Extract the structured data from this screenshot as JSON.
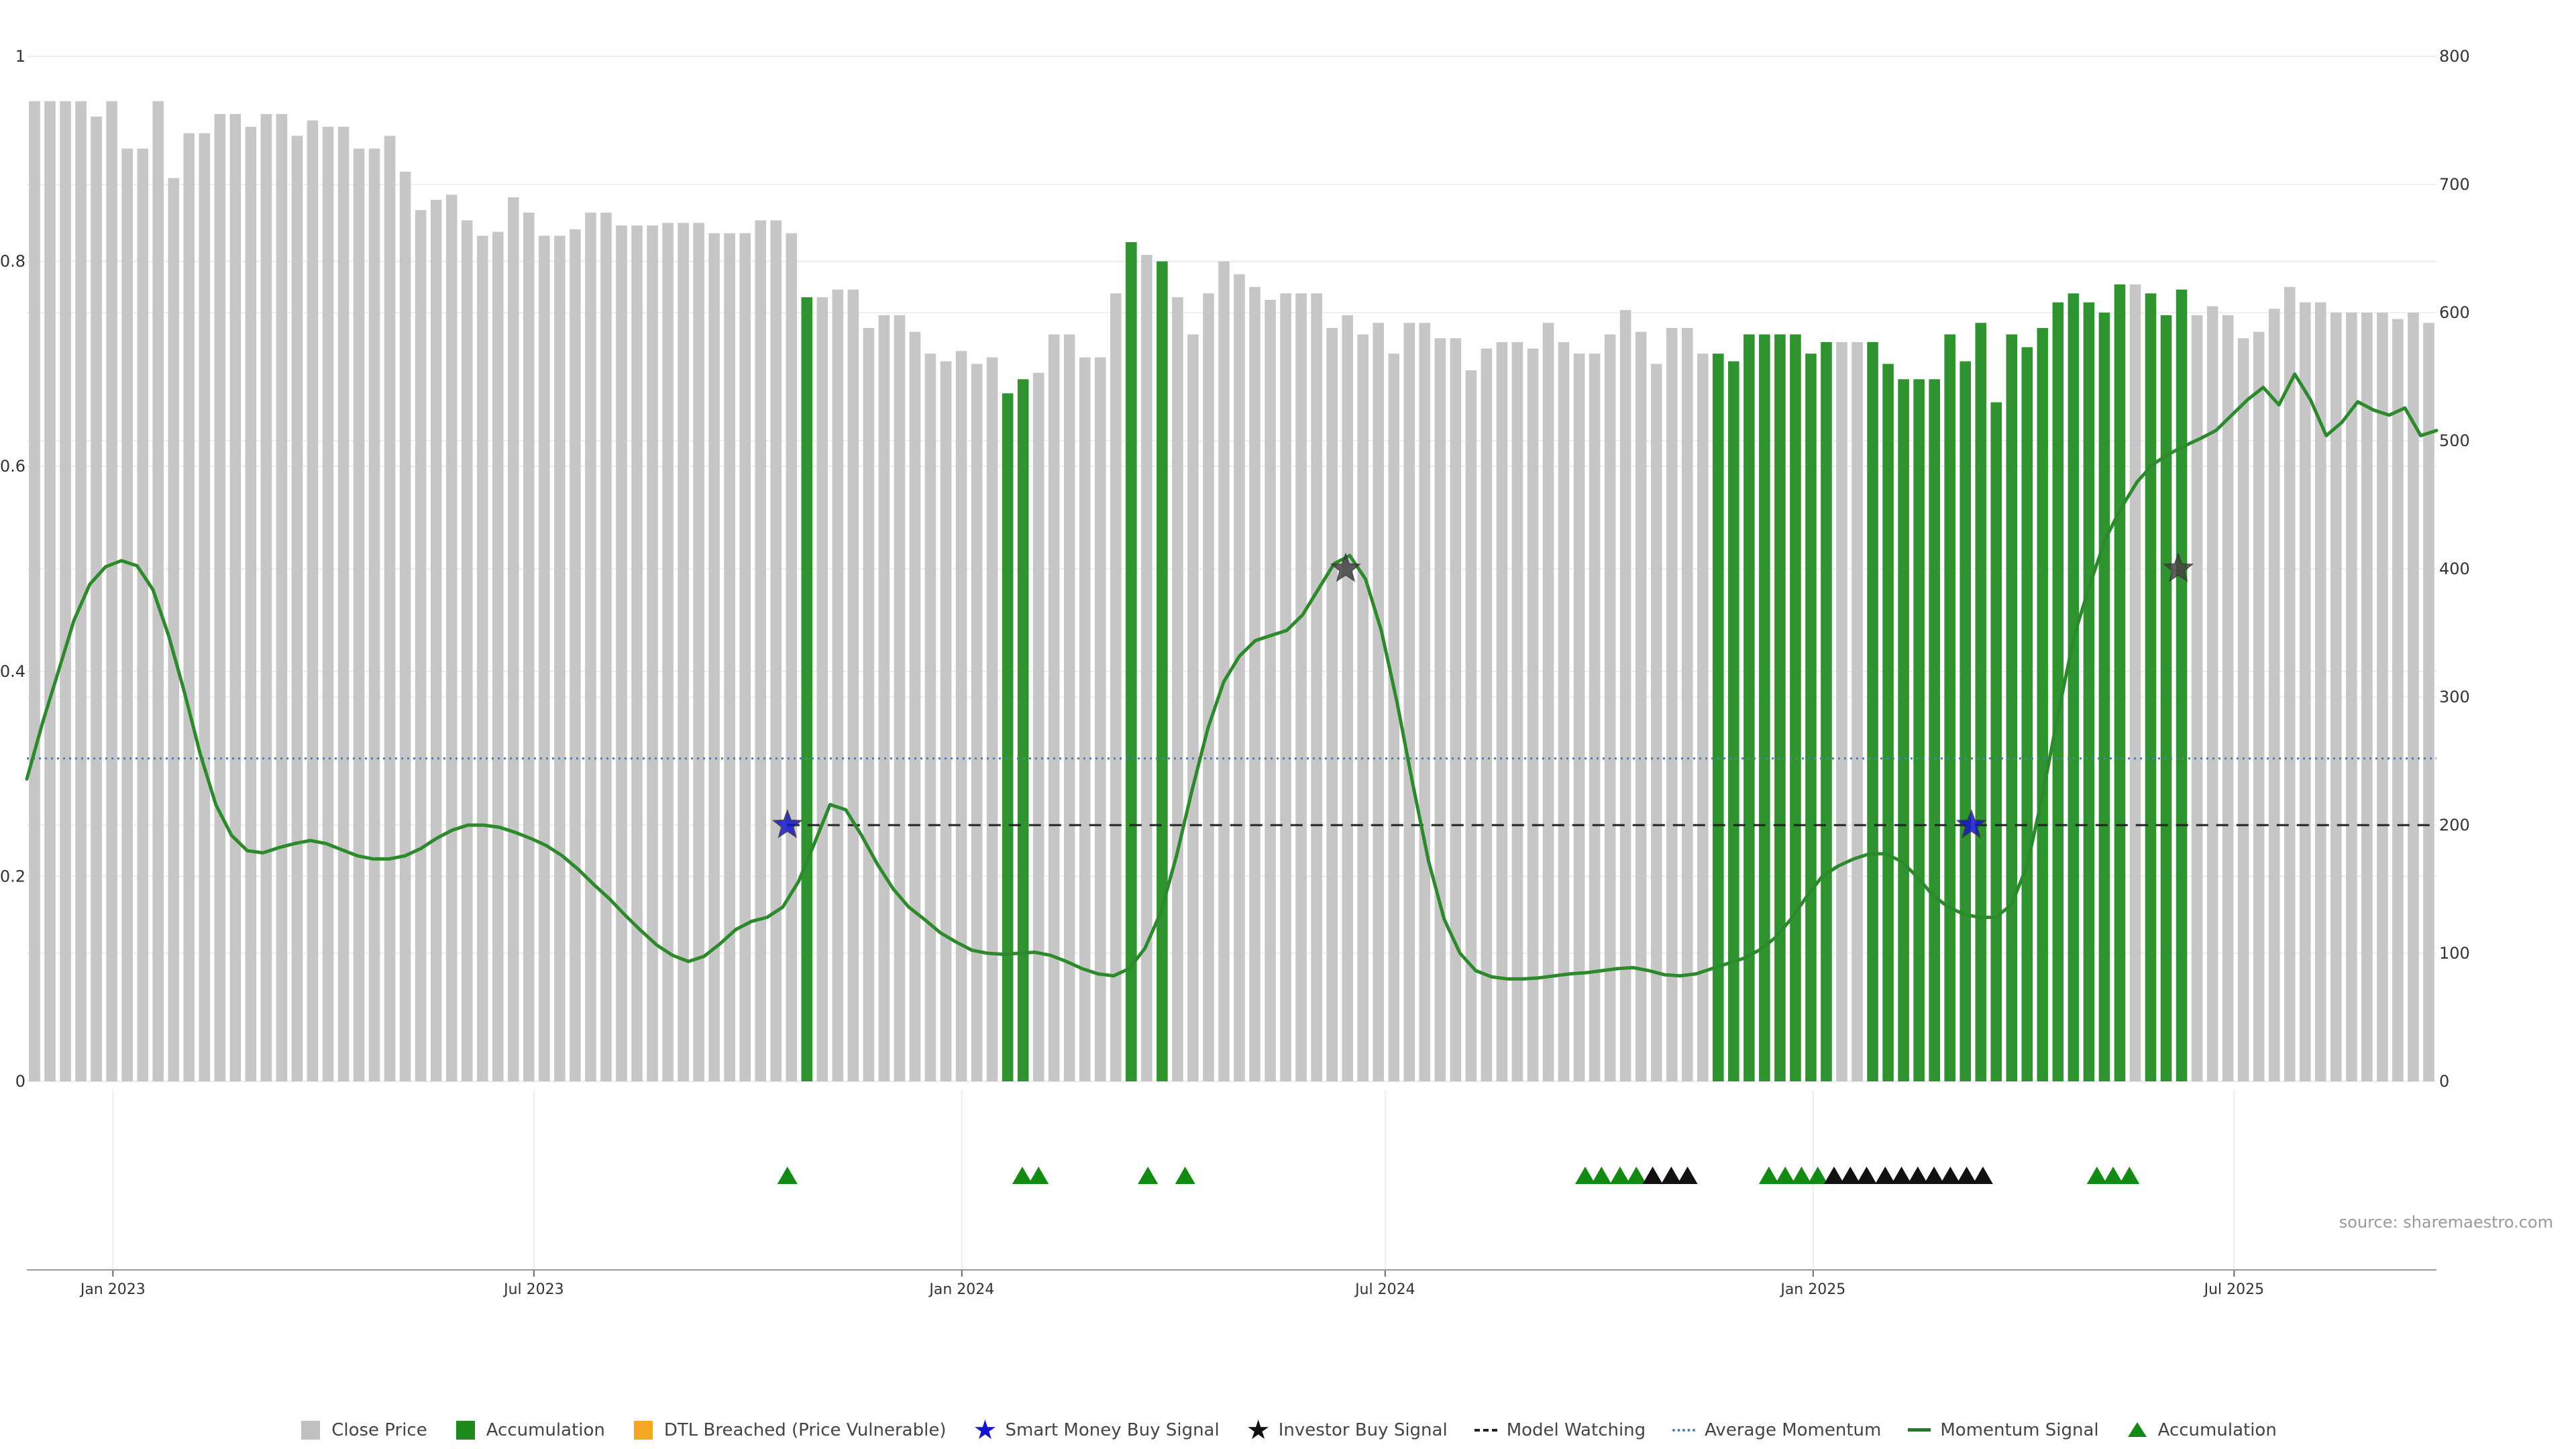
{
  "colors": {
    "close": "#c6c6c6",
    "accumulation": "#2f932f",
    "dtl": "#f5a623",
    "smart_money": "#1414cc",
    "investor": "#111111",
    "momentum": "#2c8a2c",
    "avg_momentum": "#4a7fb5",
    "grid": "#ececec",
    "triangle_green": "#138a13",
    "triangle_black": "#111111"
  },
  "source": "source: sharemaestro.com",
  "legend": [
    {
      "label": "Close Price",
      "kind": "square",
      "color": "#c0c0c0",
      "glyph": ""
    },
    {
      "label": "Accumulation",
      "kind": "square",
      "color": "#1e8a1e",
      "glyph": ""
    },
    {
      "label": "DTL Breached (Price Vulnerable)",
      "kind": "square",
      "color": "#f5a623",
      "glyph": ""
    },
    {
      "label": "Smart Money Buy Signal",
      "kind": "glyph",
      "color": "#1414cc",
      "glyph": "★"
    },
    {
      "label": "Investor Buy Signal",
      "kind": "glyph",
      "color": "#111111",
      "glyph": "★"
    },
    {
      "label": "Model Watching",
      "kind": "dash",
      "color": "#222222",
      "glyph": ""
    },
    {
      "label": "Average Momentum",
      "kind": "dot",
      "color": "#4a7fb5",
      "glyph": ""
    },
    {
      "label": "Momentum Signal",
      "kind": "solid",
      "color": "#1e7d1e",
      "glyph": ""
    },
    {
      "label": "Accumulation",
      "kind": "tri",
      "color": "#138a13",
      "glyph": ""
    }
  ],
  "chart_data": {
    "type": "bar",
    "x_start": "2022-11-25",
    "x_end": "2025-09-26",
    "x_ticks": [
      {
        "date": "2023-01-01",
        "label": "Jan 2023"
      },
      {
        "date": "2023-07-01",
        "label": "Jul 2023"
      },
      {
        "date": "2024-01-01",
        "label": "Jan 2024"
      },
      {
        "date": "2024-07-01",
        "label": "Jul 2024"
      },
      {
        "date": "2025-01-01",
        "label": "Jan 2025"
      },
      {
        "date": "2025-07-01",
        "label": "Jul 2025"
      }
    ],
    "left_axis": {
      "ylim": [
        0,
        1
      ],
      "ticks": [
        "0",
        "0.2",
        "0.4",
        "0.6",
        "0.8",
        "1"
      ]
    },
    "right_axis": {
      "ylim": [
        0,
        800
      ],
      "ticks": [
        "0",
        "100",
        "200",
        "300",
        "400",
        "500",
        "600",
        "700",
        "800"
      ]
    },
    "grid": true,
    "legend_position": "bottom",
    "close_price": [
      765,
      765,
      765,
      765,
      753,
      765,
      728,
      728,
      765,
      705,
      740,
      740,
      755,
      755,
      745,
      755,
      755,
      738,
      750,
      745,
      745,
      728,
      728,
      738,
      710,
      680,
      688,
      692,
      672,
      660,
      663,
      690,
      678,
      660,
      660,
      665,
      678,
      678,
      668,
      668,
      668,
      670,
      670,
      670,
      662,
      662,
      662,
      672,
      672,
      662,
      612,
      612,
      618,
      618,
      588,
      598,
      598,
      585,
      568,
      562,
      570,
      560,
      565,
      537,
      548,
      553,
      583,
      583,
      565,
      565,
      615,
      655,
      645,
      640,
      612,
      583,
      615,
      640,
      630,
      620,
      610,
      615,
      615,
      615,
      588,
      598,
      583,
      592,
      568,
      592,
      592,
      580,
      580,
      555,
      572,
      577,
      577,
      572,
      592,
      577,
      568,
      568,
      583,
      602,
      585,
      560,
      588,
      588,
      568,
      568,
      562,
      583,
      583,
      583,
      583,
      568,
      577,
      577,
      577,
      577,
      560,
      548,
      548,
      548,
      583,
      562,
      592,
      530,
      583,
      573,
      588,
      608,
      615,
      608,
      600,
      622,
      622,
      615,
      598,
      618,
      598,
      605,
      598,
      580,
      585,
      603,
      620,
      608,
      608,
      600,
      600,
      600,
      600,
      595,
      600,
      592
    ],
    "accumulation_bar_indices": [
      50,
      63,
      64,
      71,
      73,
      109,
      110,
      111,
      112,
      113,
      114,
      115,
      116,
      119,
      120,
      121,
      122,
      123,
      124,
      125,
      126,
      127,
      128,
      129,
      130,
      129,
      131,
      132,
      133,
      134,
      135,
      137,
      138,
      139
    ],
    "momentum": [
      0.295,
      0.35,
      0.4,
      0.45,
      0.485,
      0.502,
      0.508,
      0.503,
      0.48,
      0.435,
      0.38,
      0.32,
      0.27,
      0.24,
      0.225,
      0.223,
      0.228,
      0.232,
      0.235,
      0.232,
      0.226,
      0.22,
      0.217,
      0.217,
      0.22,
      0.227,
      0.237,
      0.245,
      0.25,
      0.25,
      0.248,
      0.243,
      0.237,
      0.23,
      0.22,
      0.207,
      0.192,
      0.178,
      0.162,
      0.147,
      0.133,
      0.123,
      0.117,
      0.122,
      0.134,
      0.148,
      0.156,
      0.16,
      0.17,
      0.195,
      0.232,
      0.27,
      0.265,
      0.24,
      0.212,
      0.188,
      0.17,
      0.158,
      0.145,
      0.136,
      0.128,
      0.125,
      0.124,
      0.125,
      0.126,
      0.123,
      0.117,
      0.11,
      0.105,
      0.103,
      0.11,
      0.13,
      0.165,
      0.22,
      0.285,
      0.345,
      0.39,
      0.415,
      0.43,
      0.435,
      0.44,
      0.455,
      0.48,
      0.505,
      0.513,
      0.49,
      0.44,
      0.37,
      0.29,
      0.215,
      0.158,
      0.125,
      0.108,
      0.102,
      0.1,
      0.1,
      0.101,
      0.103,
      0.105,
      0.106,
      0.108,
      0.11,
      0.111,
      0.108,
      0.104,
      0.103,
      0.105,
      0.11,
      0.115,
      0.12,
      0.128,
      0.14,
      0.158,
      0.18,
      0.2,
      0.21,
      0.217,
      0.222,
      0.222,
      0.215,
      0.2,
      0.182,
      0.17,
      0.163,
      0.16,
      0.16,
      0.172,
      0.21,
      0.28,
      0.36,
      0.435,
      0.485,
      0.53,
      0.56,
      0.585,
      0.602,
      0.612,
      0.62,
      0.627,
      0.635,
      0.65,
      0.665,
      0.677,
      0.66,
      0.69,
      0.665,
      0.63,
      0.643,
      0.663,
      0.655,
      0.65,
      0.657,
      0.63,
      0.635
    ],
    "average_momentum": 0.315,
    "model_watching": [
      {
        "start": "2023-10-18",
        "end": "2025-09-26",
        "value": 0.25
      }
    ],
    "smart_money_signals": [
      {
        "date": "2023-10-18",
        "value": 0.25
      },
      {
        "date": "2025-03-10",
        "value": 0.25
      }
    ],
    "investor_signals": [
      {
        "date": "2024-06-14",
        "value": 0.5
      },
      {
        "date": "2025-06-07",
        "value": 0.5
      }
    ],
    "accumulation_markers": {
      "green": [
        "2023-10-18",
        "2024-01-27",
        "2024-02-03",
        "2024-03-21",
        "2024-04-06",
        "2024-09-25",
        "2024-10-02",
        "2024-10-10",
        "2024-10-17",
        "2024-12-13",
        "2024-12-20",
        "2024-12-27",
        "2025-01-03",
        "2025-05-03",
        "2025-05-10",
        "2025-05-17"
      ],
      "black": [
        "2024-10-24",
        "2024-11-01",
        "2024-11-08",
        "2025-01-10",
        "2025-01-17",
        "2025-01-24",
        "2025-02-01",
        "2025-02-08",
        "2025-02-15",
        "2025-02-22",
        "2025-03-01",
        "2025-03-08",
        "2025-03-15"
      ]
    }
  }
}
